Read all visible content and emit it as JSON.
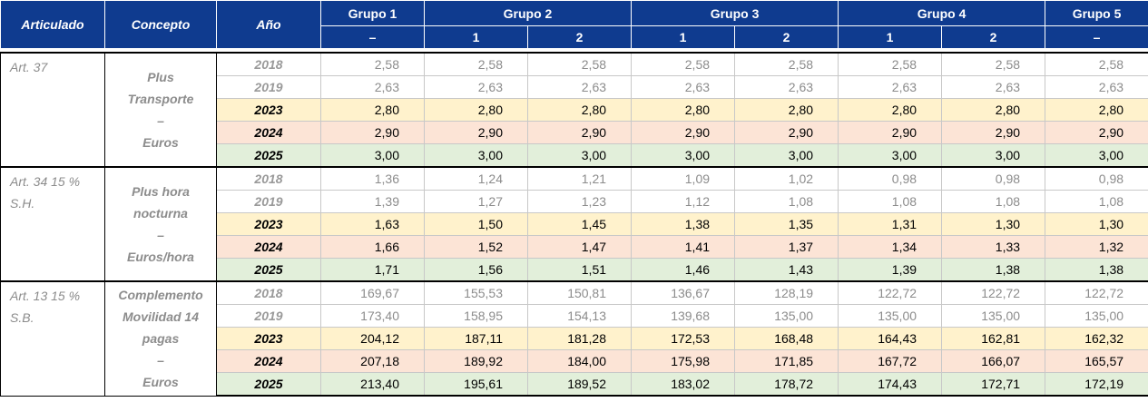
{
  "header": {
    "articulado": "Articulado",
    "concepto": "Concepto",
    "anio": "Año",
    "groups": [
      {
        "label": "Grupo 1",
        "subs": [
          "–"
        ]
      },
      {
        "label": "Grupo 2",
        "subs": [
          "1",
          "2"
        ]
      },
      {
        "label": "Grupo 3",
        "subs": [
          "1",
          "2"
        ]
      },
      {
        "label": "Grupo 4",
        "subs": [
          "1",
          "2"
        ]
      },
      {
        "label": "Grupo 5",
        "subs": [
          "–"
        ]
      }
    ]
  },
  "sections": [
    {
      "articulo": "Art. 37",
      "concepto": [
        "Plus",
        "Transporte",
        "–",
        "Euros"
      ],
      "rows": [
        {
          "year": "2018",
          "values": [
            "2,58",
            "2,58",
            "2,58",
            "2,58",
            "2,58",
            "2,58",
            "2,58",
            "2,58"
          ]
        },
        {
          "year": "2019",
          "values": [
            "2,63",
            "2,63",
            "2,63",
            "2,63",
            "2,63",
            "2,63",
            "2,63",
            "2,63"
          ]
        },
        {
          "year": "2023",
          "values": [
            "2,80",
            "2,80",
            "2,80",
            "2,80",
            "2,80",
            "2,80",
            "2,80",
            "2,80"
          ]
        },
        {
          "year": "2024",
          "values": [
            "2,90",
            "2,90",
            "2,90",
            "2,90",
            "2,90",
            "2,90",
            "2,90",
            "2,90"
          ]
        },
        {
          "year": "2025",
          "values": [
            "3,00",
            "3,00",
            "3,00",
            "3,00",
            "3,00",
            "3,00",
            "3,00",
            "3,00"
          ]
        }
      ]
    },
    {
      "articulo": "Art. 34 15 % S.H.",
      "concepto": [
        "Plus hora",
        "nocturna",
        "–",
        "Euros/hora"
      ],
      "rows": [
        {
          "year": "2018",
          "values": [
            "1,36",
            "1,24",
            "1,21",
            "1,09",
            "1,02",
            "0,98",
            "0,98",
            "0,98"
          ]
        },
        {
          "year": "2019",
          "values": [
            "1,39",
            "1,27",
            "1,23",
            "1,12",
            "1,08",
            "1,08",
            "1,08",
            "1,08"
          ]
        },
        {
          "year": "2023",
          "values": [
            "1,63",
            "1,50",
            "1,45",
            "1,38",
            "1,35",
            "1,31",
            "1,30",
            "1,30"
          ]
        },
        {
          "year": "2024",
          "values": [
            "1,66",
            "1,52",
            "1,47",
            "1,41",
            "1,37",
            "1,34",
            "1,33",
            "1,32"
          ]
        },
        {
          "year": "2025",
          "values": [
            "1,71",
            "1,56",
            "1,51",
            "1,46",
            "1,43",
            "1,39",
            "1,38",
            "1,38"
          ]
        }
      ]
    },
    {
      "articulo": "Art. 13 15 % S.B.",
      "concepto": [
        "Complemento",
        "Movilidad 14",
        "pagas",
        "–",
        "Euros"
      ],
      "rows": [
        {
          "year": "2018",
          "values": [
            "169,67",
            "155,53",
            "150,81",
            "136,67",
            "128,19",
            "122,72",
            "122,72",
            "122,72"
          ]
        },
        {
          "year": "2019",
          "values": [
            "173,40",
            "158,95",
            "154,13",
            "139,68",
            "135,00",
            "135,00",
            "135,00",
            "135,00"
          ]
        },
        {
          "year": "2023",
          "values": [
            "204,12",
            "187,11",
            "181,28",
            "172,53",
            "168,48",
            "164,43",
            "162,81",
            "162,32"
          ]
        },
        {
          "year": "2024",
          "values": [
            "207,18",
            "189,92",
            "184,00",
            "175,98",
            "171,85",
            "167,72",
            "166,07",
            "165,57"
          ]
        },
        {
          "year": "2025",
          "values": [
            "213,40",
            "195,61",
            "189,52",
            "183,02",
            "178,72",
            "174,43",
            "172,71",
            "172,19"
          ]
        }
      ]
    }
  ]
}
